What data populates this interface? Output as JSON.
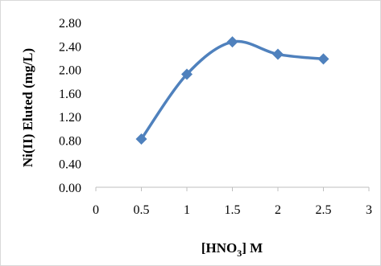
{
  "chart_data": {
    "type": "line",
    "x": [
      0.5,
      1,
      1.5,
      2,
      2.5
    ],
    "series": [
      {
        "values": [
          0.82,
          1.92,
          2.47,
          2.26,
          2.18
        ]
      }
    ],
    "xlim": [
      0,
      3
    ],
    "ylim": [
      0,
      2.8
    ],
    "x_ticks": [
      "0",
      "0.5",
      "1",
      "1.5",
      "2",
      "2.5",
      "3"
    ],
    "y_ticks": [
      "0.00",
      "0.40",
      "0.80",
      "1.20",
      "1.60",
      "2.00",
      "2.40",
      "2.80"
    ],
    "xlabel_main": "[HNO",
    "xlabel_sub": "3",
    "xlabel_tail": "] M",
    "ylabel": "Ni(II) Eluted (mg/L)",
    "grid": false,
    "smooth": true,
    "marker": "diamond",
    "line_color": "#4f81bd"
  }
}
